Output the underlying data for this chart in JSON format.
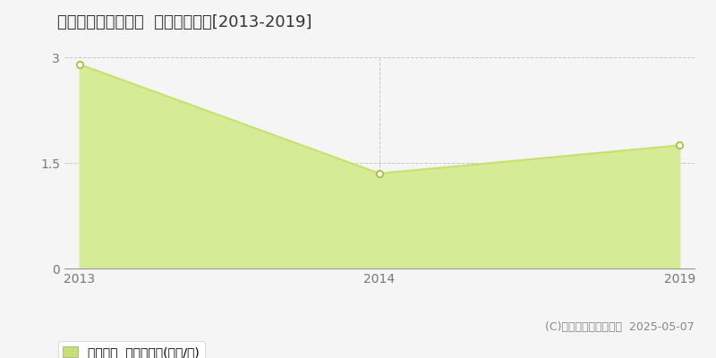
{
  "title": "八重山郡竹富町小浜  土地価格推移[2013-2019]",
  "x_labels": [
    "2013",
    "2014",
    "2019"
  ],
  "y_values": [
    2.9,
    1.35,
    1.75
  ],
  "y_ticks": [
    0,
    1.5,
    3
  ],
  "ylim": [
    0,
    3
  ],
  "line_color": "#c8e06e",
  "fill_color": "#d4ec96",
  "marker_facecolor": "#ffffff",
  "marker_edgecolor": "#aabf40",
  "grid_color": "#aaaaaa",
  "vline_index": 1,
  "background_color": "#f5f5f5",
  "legend_label": "土地価格  平均坪単価(万円/坪)",
  "copyright_text": "(C)土地価格ドットコム  2025-05-07",
  "title_fontsize": 13,
  "tick_fontsize": 10,
  "legend_fontsize": 10,
  "copyright_fontsize": 9
}
